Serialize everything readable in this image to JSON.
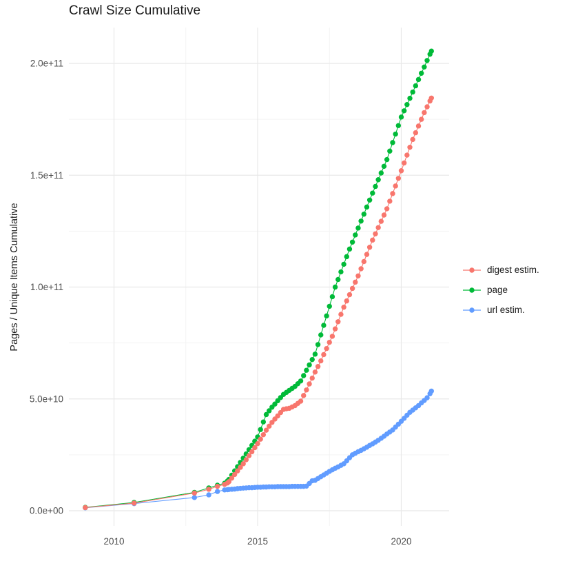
{
  "title": "Crawl Size Cumulative",
  "chart_data": {
    "type": "scatter",
    "title": "Crawl Size Cumulative",
    "xlabel": "",
    "ylabel": "Pages / Unique Items Cumulative",
    "grid": "on",
    "legend_position": "right",
    "xlim_years": [
      2008.4,
      2021.8
    ],
    "ylim": [
      -7000000000.0,
      216000000000.0
    ],
    "values_scale": 1000000000.0,
    "x_ticks": {
      "values": [
        2010,
        2015,
        2020
      ],
      "labels": [
        "2010",
        "2015",
        "2020"
      ],
      "minor": [
        2012.5,
        2017.5
      ]
    },
    "y_ticks": {
      "values_billions": [
        0,
        50,
        100,
        150,
        200
      ],
      "labels": [
        "0.0e+00",
        "5.0e+10",
        "1.0e+11",
        "1.5e+11",
        "2.0e+11"
      ],
      "minor_billions": [
        25,
        75,
        125,
        175
      ]
    },
    "x_years": [
      2009.0,
      2010.7,
      2012.8,
      2013.3,
      2013.6,
      2013.85,
      2013.95,
      2014.0,
      2014.1,
      2014.2,
      2014.3,
      2014.4,
      2014.5,
      2014.6,
      2014.7,
      2014.8,
      2014.9,
      2015.0,
      2015.1,
      2015.2,
      2015.3,
      2015.4,
      2015.5,
      2015.6,
      2015.7,
      2015.8,
      2015.9,
      2016.0,
      2016.1,
      2016.2,
      2016.3,
      2016.4,
      2016.5,
      2016.6,
      2016.7,
      2016.8,
      2016.9,
      2017.0,
      2017.1,
      2017.2,
      2017.3,
      2017.4,
      2017.5,
      2017.6,
      2017.7,
      2017.8,
      2017.9,
      2018.0,
      2018.1,
      2018.2,
      2018.3,
      2018.4,
      2018.5,
      2018.6,
      2018.7,
      2018.8,
      2018.9,
      2019.0,
      2019.1,
      2019.2,
      2019.3,
      2019.4,
      2019.5,
      2019.6,
      2019.7,
      2019.8,
      2019.9,
      2020.0,
      2020.1,
      2020.2,
      2020.3,
      2020.4,
      2020.5,
      2020.6,
      2020.7,
      2020.8,
      2020.9,
      2021.0,
      2021.05
    ],
    "series": [
      {
        "name": "digest estim.",
        "color": "#F8766D",
        "values_billions": [
          1.4,
          3.4,
          7.9,
          9.6,
          10.9,
          11.8,
          12.4,
          13.0,
          14.6,
          16.2,
          17.8,
          19.4,
          21.0,
          22.8,
          24.6,
          26.4,
          28.2,
          30.0,
          32.0,
          34.0,
          36.0,
          37.8,
          39.5,
          41.0,
          42.4,
          43.9,
          45.3,
          45.6,
          45.8,
          46.4,
          47.0,
          48.0,
          49.0,
          51.5,
          54.0,
          56.7,
          59.3,
          62.0,
          64.5,
          67.0,
          69.8,
          72.5,
          75.3,
          78.0,
          81.3,
          84.5,
          87.8,
          91.0,
          93.8,
          96.6,
          99.4,
          102.2,
          105.0,
          108.2,
          111.4,
          114.6,
          117.8,
          121.0,
          123.8,
          126.6,
          129.4,
          132.2,
          135.0,
          138.4,
          141.8,
          145.2,
          148.6,
          152.0,
          155.5,
          159.0,
          162.5,
          166.0,
          169.0,
          172.0,
          175.0,
          178.0,
          180.6,
          183.2,
          184.5
        ]
      },
      {
        "name": "page",
        "color": "#00BA38",
        "values_billions": [
          1.5,
          3.7,
          8.2,
          10.2,
          11.4,
          12.3,
          13.3,
          14.0,
          15.9,
          17.8,
          19.7,
          21.6,
          23.5,
          25.4,
          27.3,
          29.2,
          31.1,
          33.0,
          36.3,
          39.7,
          43.0,
          44.7,
          46.3,
          47.7,
          49.2,
          50.6,
          52.0,
          52.9,
          53.8,
          54.7,
          55.6,
          56.8,
          58.0,
          60.4,
          62.8,
          65.2,
          67.6,
          70.0,
          74.3,
          78.6,
          82.9,
          87.1,
          91.4,
          95.7,
          100.0,
          103.4,
          106.8,
          110.2,
          113.6,
          117.0,
          120.1,
          123.3,
          126.4,
          129.5,
          132.6,
          135.8,
          138.9,
          142.0,
          145.0,
          148.0,
          151.0,
          154.0,
          157.0,
          160.8,
          164.6,
          168.4,
          172.2,
          176.0,
          178.8,
          181.6,
          184.4,
          187.2,
          190.0,
          192.8,
          195.6,
          198.4,
          201.3,
          204.1,
          205.5
        ]
      },
      {
        "name": "url estim.",
        "color": "#619CFF",
        "values_billions": [
          1.3,
          3.2,
          5.9,
          7.1,
          8.6,
          9.3,
          9.4,
          9.5,
          9.6,
          9.7,
          9.9,
          10.0,
          10.1,
          10.2,
          10.3,
          10.3,
          10.4,
          10.5,
          10.5,
          10.6,
          10.6,
          10.7,
          10.7,
          10.7,
          10.8,
          10.8,
          10.8,
          10.8,
          10.8,
          10.9,
          10.9,
          10.9,
          10.9,
          10.9,
          11.0,
          12.2,
          13.4,
          13.6,
          14.4,
          15.2,
          16.0,
          16.8,
          17.6,
          18.3,
          19.0,
          19.6,
          20.3,
          21.0,
          22.3,
          23.7,
          25.0,
          25.7,
          26.4,
          27.0,
          27.7,
          28.4,
          29.2,
          29.9,
          30.7,
          31.5,
          32.4,
          33.3,
          34.3,
          35.2,
          36.1,
          37.4,
          38.7,
          40.0,
          41.3,
          42.7,
          44.0,
          45.0,
          46.0,
          47.0,
          48.2,
          49.3,
          50.5,
          52.3,
          53.5
        ]
      }
    ]
  },
  "colors": {
    "background": "#FFFFFF",
    "grid_major": "#E8E8E8",
    "grid_minor": "#F3F3F3",
    "tick_text": "#4D4D4D",
    "title_text": "#1A1A1A"
  }
}
